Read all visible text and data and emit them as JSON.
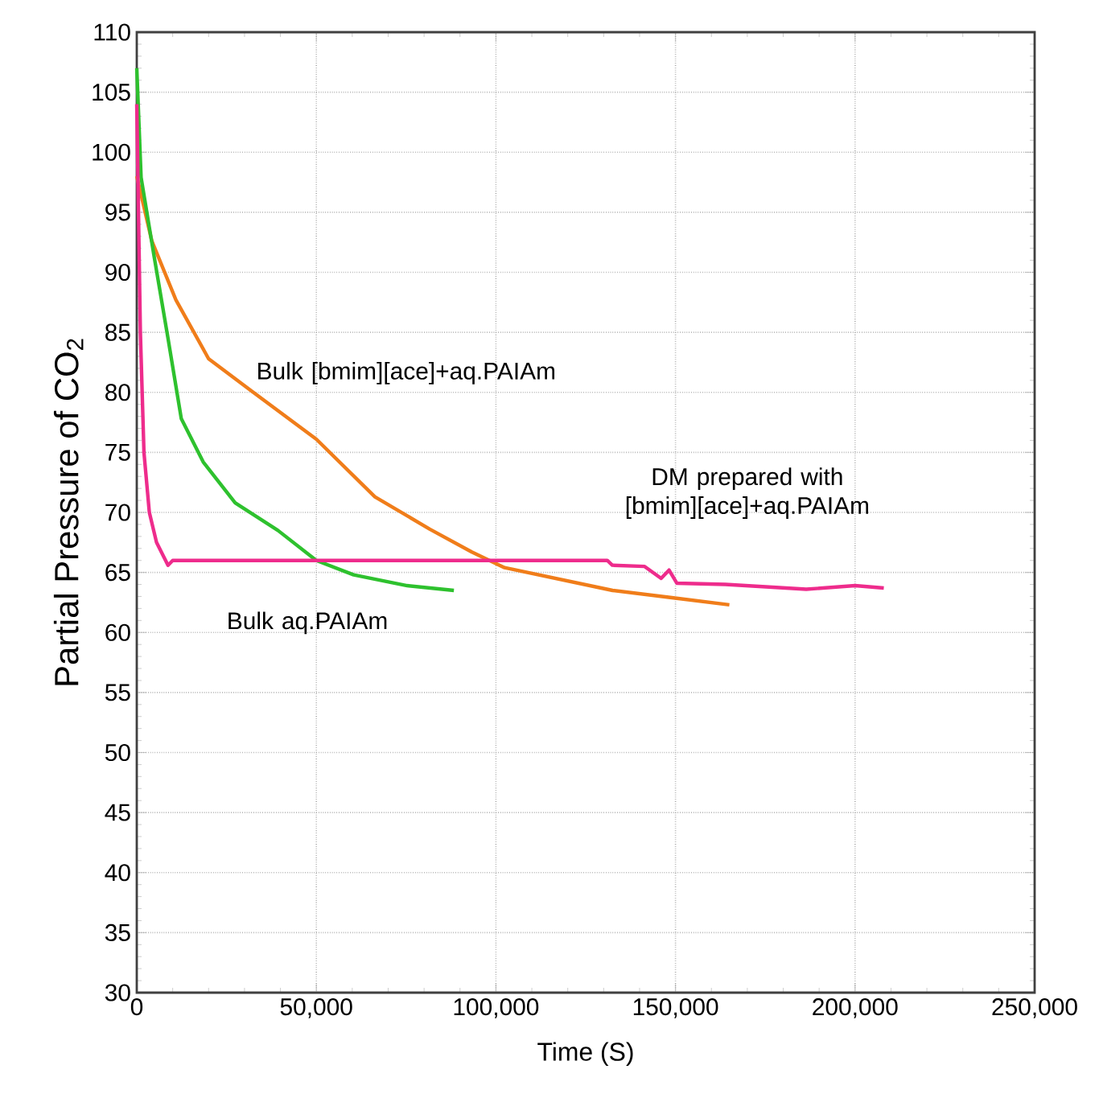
{
  "chart_data": {
    "type": "line",
    "xlabel": "Time (S)",
    "ylabel": "Partial Pressure of CO$_{2}$",
    "xlim": [
      0,
      250000
    ],
    "ylim": [
      30,
      110
    ],
    "xticks": [
      {
        "value": 0,
        "label": "0"
      },
      {
        "value": 50000,
        "label": "50,000"
      },
      {
        "value": 100000,
        "label": "100,000"
      },
      {
        "value": 150000,
        "label": "150,000"
      },
      {
        "value": 200000,
        "label": "200,000"
      },
      {
        "value": 250000,
        "label": "250,000"
      }
    ],
    "yticks": [
      30,
      35,
      40,
      45,
      50,
      55,
      60,
      65,
      70,
      75,
      80,
      85,
      90,
      95,
      100,
      105,
      110
    ],
    "grid": true,
    "line_style": "solid",
    "marker": "none",
    "series": [
      {
        "name": "Bulk [bmim][ace]+aq.PAIAm",
        "color": "#f07d1a",
        "x": [
          0,
          4200,
          10900,
          20000,
          32000,
          50000,
          66300,
          81600,
          93300,
          102400,
          132500,
          149000,
          165000
        ],
        "values": [
          98,
          92.6,
          87.7,
          82.8,
          80.1,
          76.1,
          71.3,
          68.6,
          66.7,
          65.4,
          63.5,
          62.9,
          62.3
        ]
      },
      {
        "name": "Bulk aq.PAIAm",
        "color": "#2ec12e",
        "x": [
          0,
          1200,
          4900,
          8700,
          12400,
          18500,
          27400,
          39300,
          50000,
          60400,
          75300,
          88300
        ],
        "values": [
          107,
          97.9,
          91.2,
          84.5,
          77.8,
          74.2,
          70.8,
          68.5,
          66,
          64.8,
          63.9,
          63.5
        ]
      },
      {
        "name": "DM prepared with [bmim][ace]+aq.PAIAm",
        "color": "#ee2c8c",
        "x": [
          0,
          1000,
          2000,
          3500,
          5500,
          8700,
          10000,
          96400,
          131000,
          132400,
          141400,
          146000,
          148200,
          150400,
          163900,
          186400,
          200000,
          208000
        ],
        "values": [
          104,
          85,
          75,
          70,
          67.5,
          65.6,
          66,
          66,
          66,
          65.6,
          65.5,
          64.5,
          65.2,
          64.1,
          64,
          63.6,
          63.9,
          63.7
        ]
      }
    ]
  }
}
